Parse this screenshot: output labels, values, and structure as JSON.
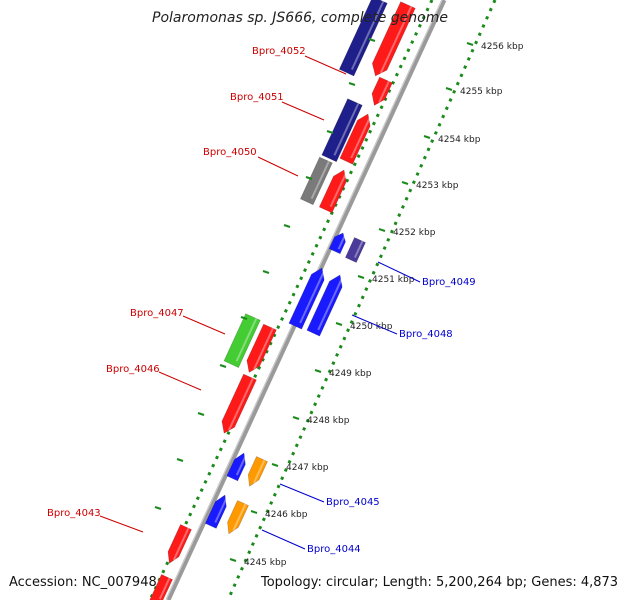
{
  "title": "Polaromonas sp. JS666, complete genome",
  "footer": {
    "accession": "Accession: NC_007948",
    "summary": "Topology: circular; Length: 5,200,264 bp; Genes: 4,873"
  },
  "scale_labels": [
    "4256 kbp",
    "4255 kbp",
    "4254 kbp",
    "4253 kbp",
    "4252 kbp",
    "4251 kbp",
    "4250 kbp",
    "4249 kbp",
    "4248 kbp",
    "4247 kbp",
    "4246 kbp",
    "4245 kbp"
  ],
  "gene_labels": [
    {
      "name": "Bpro_4052",
      "color": "#cc0000"
    },
    {
      "name": "Bpro_4051",
      "color": "#cc0000"
    },
    {
      "name": "Bpro_4050",
      "color": "#cc0000"
    },
    {
      "name": "Bpro_4049",
      "color": "#0000cc"
    },
    {
      "name": "Bpro_4048",
      "color": "#0000cc"
    },
    {
      "name": "Bpro_4047",
      "color": "#cc0000"
    },
    {
      "name": "Bpro_4046",
      "color": "#cc0000"
    },
    {
      "name": "Bpro_4045",
      "color": "#0000cc"
    },
    {
      "name": "Bpro_4044",
      "color": "#0000cc"
    },
    {
      "name": "Bpro_4043",
      "color": "#cc0000"
    }
  ],
  "colors": {
    "backbone": "#8c8c8c",
    "dotted_ring": "#1a8a1a",
    "red": "#ff1a1a",
    "navy": "#1f1f8c",
    "gray": "#7a7a7a",
    "blue": "#1a1aff",
    "purple": "#4a3a9a",
    "green": "#44cc33",
    "orange": "#ff9900"
  }
}
